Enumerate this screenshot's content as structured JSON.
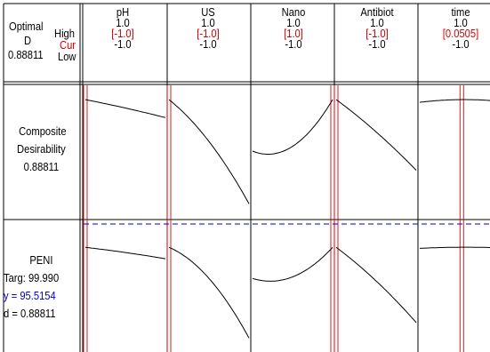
{
  "header": {
    "optimal_label": "Optimal",
    "d_label": "D",
    "d_value": "0.88811",
    "high_label": "High",
    "cur_label": "Cur",
    "low_label": "Low"
  },
  "factors": [
    {
      "name": "pH",
      "high": "1.0",
      "cur": "[-1.0]",
      "low": "-1.0",
      "cur_value": -1.0
    },
    {
      "name": "US",
      "high": "1.0",
      "cur": "[-1.0]",
      "low": "-1.0",
      "cur_value": -1.0
    },
    {
      "name": "Nano",
      "high": "1.0",
      "cur": "[1.0]",
      "low": "-1.0",
      "cur_value": 1.0
    },
    {
      "name": "Antibiot",
      "high": "1.0",
      "cur": "[-1.0]",
      "low": "-1.0",
      "cur_value": -1.0
    },
    {
      "name": "time",
      "high": "1.0",
      "cur": "[0.0505]",
      "low": "-1.0",
      "cur_value": 0.0505
    }
  ],
  "rows": [
    {
      "line1": "Composite",
      "line2": "Desirability",
      "line3": "0.88811"
    },
    {
      "line1": "PENI",
      "line2": "Targ: 99.990",
      "line3": "y = 95.5154",
      "line4": "d = 0.88811"
    }
  ],
  "colors": {
    "current_line": "#e00000",
    "target_line": "#0000c0",
    "curve": "#000000",
    "grid": "#000000"
  },
  "chart_data": {
    "type": "line",
    "title": "",
    "x_range": [
      -1.0,
      1.0
    ],
    "panels": [
      {
        "row": "Composite Desirability",
        "series": [
          {
            "factor": "pH",
            "x": [
              -1,
              0,
              1
            ],
            "y": [
              0.888,
              0.8,
              0.7
            ]
          },
          {
            "factor": "US",
            "x": [
              -1,
              0,
              1
            ],
            "y": [
              0.888,
              0.45,
              -0.2
            ]
          },
          {
            "factor": "Nano",
            "x": [
              -1,
              0,
              1
            ],
            "y": [
              0.35,
              0.4,
              0.888
            ]
          },
          {
            "factor": "Antibiot",
            "x": [
              -1,
              0,
              1
            ],
            "y": [
              0.888,
              0.55,
              0.15
            ]
          },
          {
            "factor": "time",
            "x": [
              -1,
              0,
              1
            ],
            "y": [
              0.86,
              0.888,
              0.87
            ]
          }
        ]
      },
      {
        "row": "PENI",
        "target": 99.99,
        "current_y": 95.5154,
        "series": [
          {
            "factor": "pH",
            "x": [
              -1,
              0,
              1
            ],
            "y": [
              95.5,
              94.5,
              93.3
            ]
          },
          {
            "factor": "US",
            "x": [
              -1,
              0,
              1
            ],
            "y": [
              95.5,
              89.5,
              78.0
            ]
          },
          {
            "factor": "Nano",
            "x": [
              -1,
              0,
              1
            ],
            "y": [
              89.5,
              89.8,
              95.5
            ]
          },
          {
            "factor": "Antibiot",
            "x": [
              -1,
              0,
              1
            ],
            "y": [
              95.5,
              89.0,
              81.0
            ]
          },
          {
            "factor": "time",
            "x": [
              -1,
              0,
              1
            ],
            "y": [
              95.3,
              95.52,
              95.4
            ]
          }
        ]
      }
    ]
  }
}
